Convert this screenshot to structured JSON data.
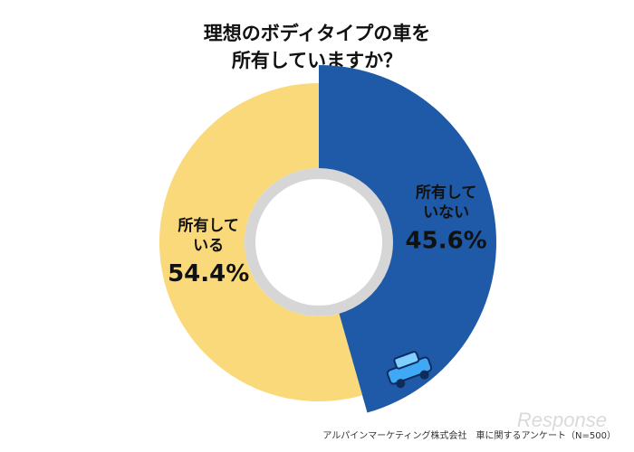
{
  "header": {
    "title_line1": "理想のボディタイプの車を",
    "title_line2": "所有していますか？"
  },
  "footer": {
    "source": "アルパインマーケティング株式会社　車に関するアンケート（N=500）",
    "watermark": "Response"
  },
  "colors": {
    "own": "#FAD97A",
    "not_own": "#1F5AA8",
    "inner_ring": "#D6D6D6"
  },
  "icons": [
    "car-icon"
  ],
  "chart_data": {
    "type": "pie",
    "title": "理想のボディタイプの車を所有していますか？",
    "slices": [
      {
        "label_line1": "所有して",
        "label_line2": "いない",
        "value": 45.6,
        "display": "45.6%",
        "color": "#1F5AA8",
        "exploded": true
      },
      {
        "label_line1": "所有して",
        "label_line2": "いる",
        "value": 54.4,
        "display": "54.4%",
        "color": "#FAD97A",
        "exploded": false
      }
    ]
  }
}
